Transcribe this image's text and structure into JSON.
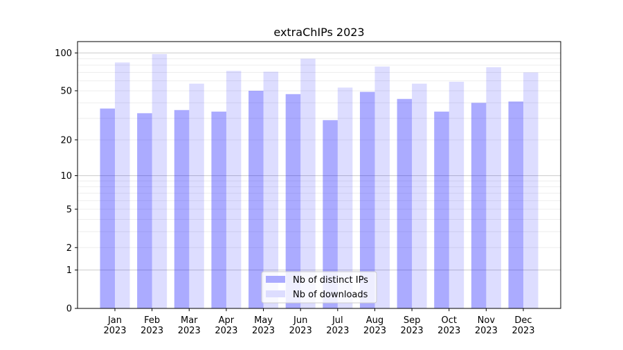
{
  "chart_data": {
    "type": "bar",
    "title": "extraChIPs 2023",
    "xlabel": "",
    "ylabel": "",
    "scale": "log(1+y)",
    "ylim": [
      0,
      123
    ],
    "yticks": [
      0,
      1,
      2,
      5,
      10,
      20,
      50,
      100
    ],
    "grid": true,
    "legend_placement": "lower-center",
    "categories": [
      "Jan\n2023",
      "Feb\n2023",
      "Mar\n2023",
      "Apr\n2023",
      "May\n2023",
      "Jun\n2023",
      "Jul\n2023",
      "Aug\n2023",
      "Sep\n2023",
      "Oct\n2023",
      "Nov\n2023",
      "Dec\n2023"
    ],
    "series": [
      {
        "name": "Nb of distinct IPs",
        "color": "#aaaaff",
        "values": [
          36,
          33,
          35,
          34,
          50,
          47,
          29,
          49,
          43,
          34,
          40,
          41
        ]
      },
      {
        "name": "Nb of downloads",
        "color": "#ddddff",
        "values": [
          84,
          98,
          57,
          72,
          71,
          90,
          53,
          78,
          57,
          59,
          77,
          70
        ]
      }
    ]
  }
}
